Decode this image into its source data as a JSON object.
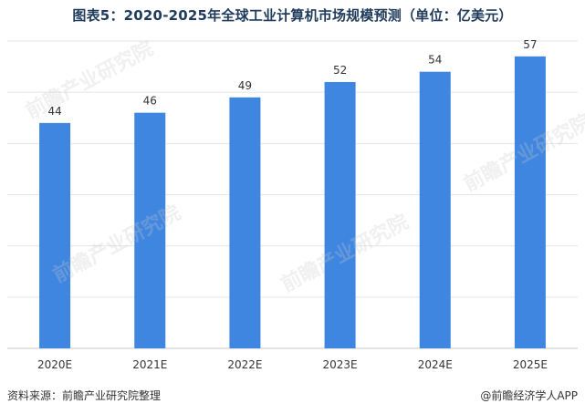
{
  "title": "图表5：2020-2025年全球工业计算机市场规模预测（单位：亿美元）",
  "source": "资料来源：前瞻产业研究院整理",
  "credit": "@前瞻经济学人APP",
  "watermark": "前瞻产业研究院",
  "colors": {
    "bar": "#3f86e0",
    "grid": "#e5e5e5",
    "axis": "#c8c8c8",
    "label": "#333333"
  },
  "chart_data": {
    "type": "bar",
    "categories": [
      "2020E",
      "2021E",
      "2022E",
      "2023E",
      "2024E",
      "2025E"
    ],
    "values": [
      44,
      46,
      49,
      52,
      54,
      57
    ],
    "title": "图表5：2020-2025年全球工业计算机市场规模预测（单位：亿美元）",
    "xlabel": "",
    "ylabel": "",
    "ylim": [
      0,
      60
    ],
    "grid": true,
    "legend": "none"
  }
}
